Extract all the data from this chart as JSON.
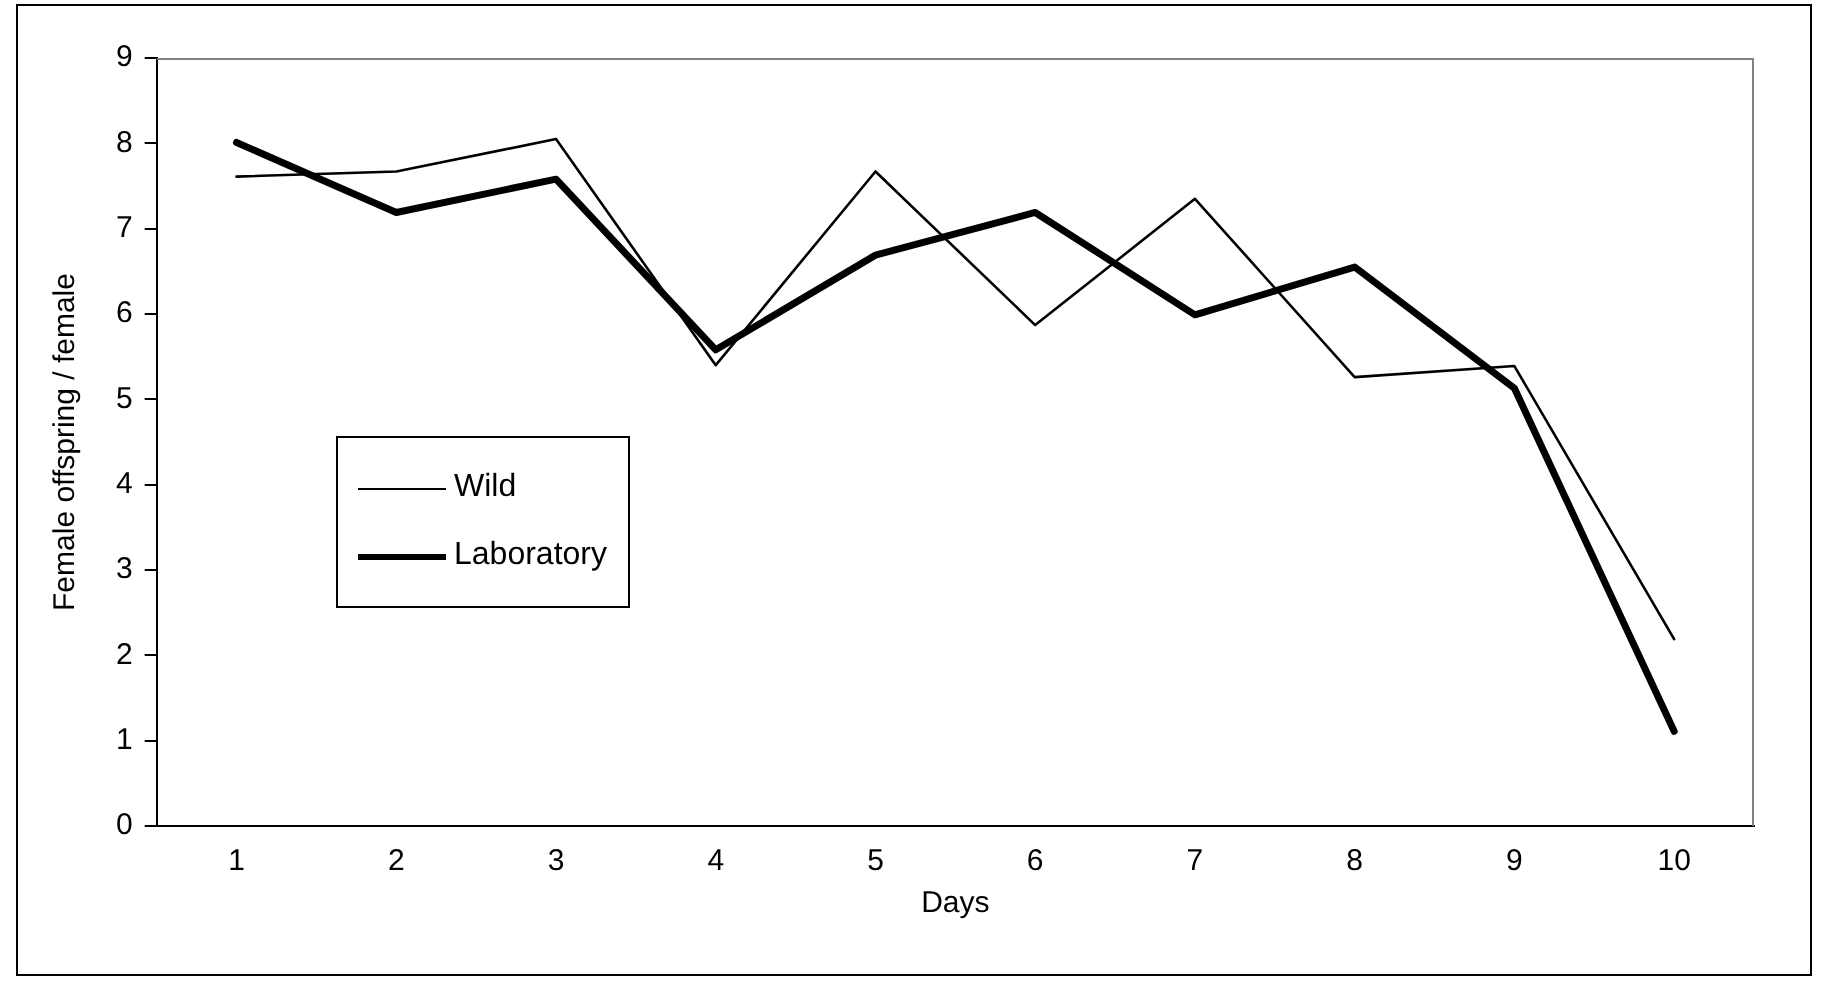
{
  "chart_data": {
    "type": "line",
    "xlabel": "Days",
    "ylabel": "Female offspring / female",
    "categories": [
      "1",
      "2",
      "3",
      "4",
      "5",
      "6",
      "7",
      "8",
      "9",
      "10"
    ],
    "series": [
      {
        "name": "Wild",
        "color": "#000000",
        "values": [
          7.61,
          7.67,
          8.05,
          5.4,
          7.67,
          5.87,
          7.35,
          5.26,
          5.39,
          2.19
        ]
      },
      {
        "name": "Laboratory",
        "color": "#000000",
        "values": [
          8.01,
          7.19,
          7.58,
          5.58,
          6.69,
          7.19,
          5.99,
          6.55,
          5.13,
          1.11
        ]
      }
    ],
    "ylim": [
      0,
      9
    ],
    "yticks": [
      0,
      1,
      2,
      3,
      4,
      5,
      6,
      7,
      8,
      9
    ],
    "grid": false,
    "legend": "left",
    "marker": "none",
    "line_style": "solid"
  }
}
